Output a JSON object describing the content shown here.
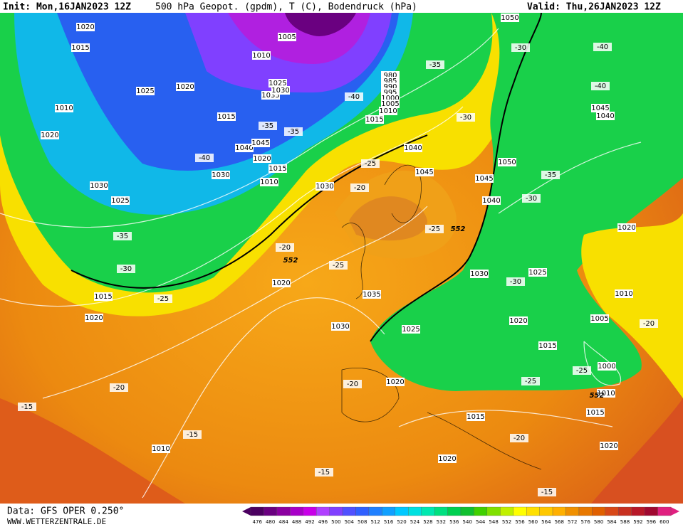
{
  "header": {
    "init": "Init: Mon,16JAN2023 12Z",
    "title": "500 hPa Geopot. (gpdm), T (C), Bodendruck (hPa)",
    "valid": "Valid: Thu,26JAN2023 12Z"
  },
  "footer": {
    "source": "Data: GFS OPER 0.250°",
    "site": "WWW.WETTERZENTRALE.DE"
  },
  "colorbar": {
    "labels": [
      "476",
      "480",
      "484",
      "488",
      "492",
      "496",
      "500",
      "504",
      "508",
      "512",
      "516",
      "520",
      "524",
      "528",
      "532",
      "536",
      "540",
      "544",
      "548",
      "552",
      "556",
      "560",
      "564",
      "568",
      "572",
      "576",
      "580",
      "584",
      "588",
      "592",
      "596",
      "600"
    ],
    "colors": [
      "#4b0060",
      "#6a0080",
      "#8b00a0",
      "#a800c8",
      "#c800e8",
      "#b040ff",
      "#8040ff",
      "#5050ff",
      "#3060ff",
      "#2080ff",
      "#10a0ff",
      "#00c8ff",
      "#00e0e0",
      "#00e8b0",
      "#00e080",
      "#00d050",
      "#10c030",
      "#40d000",
      "#80e000",
      "#c0f000",
      "#ffff00",
      "#ffe000",
      "#ffc800",
      "#ffb000",
      "#f09000",
      "#e87800",
      "#e06000",
      "#d84818",
      "#c83020",
      "#b81828",
      "#a00830",
      "#e02080"
    ]
  },
  "map": {
    "pressure_labels": [
      "1020",
      "1015",
      "1005",
      "1010",
      "1025",
      "1020",
      "1010",
      "1020",
      "1015",
      "1030",
      "1025",
      "1030",
      "1010",
      "1015",
      "1020",
      "1040",
      "1045",
      "1035",
      "1030",
      "1025",
      "980",
      "985",
      "990",
      "995",
      "1000",
      "1005",
      "1010",
      "1015",
      "1040",
      "1045",
      "1045",
      "1040",
      "1050",
      "1050",
      "1045",
      "1040",
      "1030",
      "1020",
      "1010",
      "1005",
      "1000",
      "1010",
      "1015",
      "1020",
      "1020",
      "1015",
      "1015",
      "1020",
      "1025",
      "1030",
      "1025",
      "1035",
      "1030",
      "1020",
      "1020",
      "1015",
      "1020",
      "1010"
    ],
    "temperature_labels": [
      "-30",
      "-35",
      "-40",
      "-30",
      "-25",
      "-20",
      "-25",
      "-25",
      "-20",
      "-35",
      "-30",
      "-25",
      "-40",
      "-40",
      "-35",
      "-30",
      "-30",
      "-25",
      "-25",
      "-20",
      "-20",
      "-20",
      "-20",
      "-15",
      "-15",
      "-15",
      "-15",
      "-40",
      "-35",
      "-35"
    ],
    "geopotential_labels": [
      "552",
      "552",
      "552"
    ]
  }
}
